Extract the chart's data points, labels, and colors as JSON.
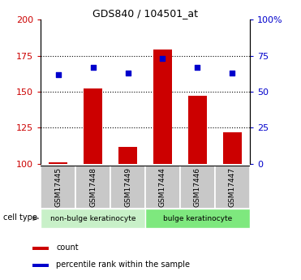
{
  "title": "GDS840 / 104501_at",
  "samples": [
    "GSM17445",
    "GSM17448",
    "GSM17449",
    "GSM17444",
    "GSM17446",
    "GSM17447"
  ],
  "counts": [
    101,
    152,
    112,
    179,
    147,
    122
  ],
  "percentiles": [
    62,
    67,
    63,
    73,
    67,
    63
  ],
  "left_ylim": [
    100,
    200
  ],
  "right_ylim": [
    0,
    100
  ],
  "left_yticks": [
    100,
    125,
    150,
    175,
    200
  ],
  "right_yticks": [
    0,
    25,
    50,
    75,
    100
  ],
  "right_yticklabels": [
    "0",
    "25",
    "50",
    "75",
    "100%"
  ],
  "group1_label": "non-bulge keratinocyte",
  "group2_label": "bulge keratinocyte",
  "group1_color": "#c8f0c8",
  "group2_color": "#7ee87e",
  "bar_color": "#cc0000",
  "dot_color": "#0000cc",
  "bar_width": 0.55,
  "bar_bottom": 100,
  "grid_yticks": [
    125,
    150,
    175
  ],
  "tick_label_color_left": "#cc0000",
  "tick_label_color_right": "#0000cc",
  "legend_count_label": "count",
  "legend_pct_label": "percentile rank within the sample",
  "cell_type_label": "cell type",
  "sample_box_color": "#c8c8c8",
  "group1_samples": [
    0,
    1,
    2
  ],
  "group2_samples": [
    3,
    4,
    5
  ]
}
